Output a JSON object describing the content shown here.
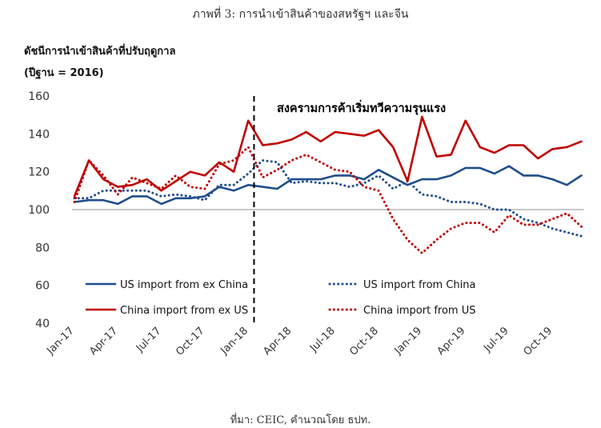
{
  "figure_title": "ภาพที่ 3: การนำเข้าสินค้าของสหรัฐฯ และจีน",
  "source_note": "ที่มา: CEIC, คำนวณโดย ธปท.",
  "colors": {
    "blue": "#1f4e8c",
    "red": "#c00000",
    "baseline": "#a6a6a6"
  },
  "chart_data": {
    "type": "line",
    "ylabel_line1": "ดัชนีการนำเข้าสินค้าที่ปรับฤดูกาล",
    "ylabel_line2": "(ปีฐาน = 2016)",
    "ylim": [
      40,
      160
    ],
    "yticks": [
      40,
      60,
      80,
      100,
      120,
      140,
      160
    ],
    "baseline": 100,
    "grid": false,
    "legend_position": "bottom-center",
    "x": [
      "Jan-17",
      "Feb-17",
      "Mar-17",
      "Apr-17",
      "May-17",
      "Jun-17",
      "Jul-17",
      "Aug-17",
      "Sep-17",
      "Oct-17",
      "Nov-17",
      "Dec-17",
      "Jan-18",
      "Feb-18",
      "Mar-18",
      "Apr-18",
      "May-18",
      "Jun-18",
      "Jul-18",
      "Aug-18",
      "Sep-18",
      "Oct-18",
      "Nov-18",
      "Dec-18",
      "Jan-19",
      "Feb-19",
      "Mar-19",
      "Apr-19",
      "May-19",
      "Jun-19",
      "Jul-19",
      "Aug-19",
      "Sep-19",
      "Oct-19",
      "Nov-19",
      "Dec-19"
    ],
    "xtick_labels": [
      "Jan-17",
      "Apr-17",
      "Jul-17",
      "Oct-17",
      "Jan-18",
      "Apr-18",
      "Jul-18",
      "Oct-18",
      "Jan-19",
      "Apr-19",
      "Jul-19",
      "Oct-19"
    ],
    "annotation": {
      "text": "สงครามการค้าเริ่มทวีความรุนแรง",
      "x": "Mar-18"
    },
    "series": [
      {
        "name": "US import from ex China",
        "color": "#1f4e8c",
        "dash": false,
        "values": [
          104,
          105,
          105,
          103,
          107,
          107,
          103,
          106,
          106,
          107,
          112,
          110,
          113,
          112,
          111,
          116,
          116,
          116,
          118,
          118,
          116,
          121,
          117,
          113,
          116,
          116,
          118,
          122,
          122,
          119,
          123,
          118,
          118,
          116,
          113,
          118
        ]
      },
      {
        "name": "US import from China",
        "color": "#1f4e8c",
        "dash": true,
        "values": [
          106,
          106,
          110,
          110,
          110,
          110,
          107,
          108,
          107,
          105,
          113,
          113,
          119,
          126,
          125,
          114,
          115,
          114,
          114,
          112,
          114,
          118,
          111,
          115,
          108,
          107,
          104,
          104,
          103,
          100,
          100,
          95,
          93,
          90,
          88,
          86
        ]
      },
      {
        "name": "China import from ex US",
        "color": "#c00000",
        "dash": false,
        "values": [
          107,
          126,
          116,
          112,
          113,
          116,
          110,
          115,
          120,
          118,
          125,
          120,
          147,
          134,
          135,
          137,
          141,
          136,
          141,
          140,
          139,
          142,
          133,
          115,
          149,
          128,
          129,
          147,
          133,
          130,
          134,
          134,
          127,
          132,
          133,
          136
        ]
      },
      {
        "name": "China import from US",
        "color": "#c00000",
        "dash": true,
        "values": [
          104,
          126,
          118,
          108,
          117,
          114,
          111,
          118,
          112,
          111,
          124,
          126,
          133,
          117,
          121,
          126,
          129,
          125,
          121,
          120,
          112,
          110,
          95,
          84,
          77,
          84,
          90,
          93,
          93,
          88,
          97,
          92,
          92,
          95,
          98,
          91
        ]
      }
    ]
  }
}
